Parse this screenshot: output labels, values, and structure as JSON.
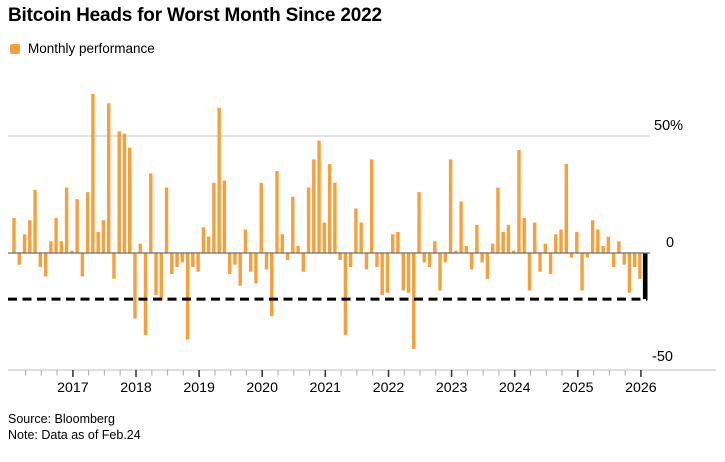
{
  "header": {
    "title": "Bitcoin Heads for Worst Month Since 2022"
  },
  "legend": {
    "label": "Monthly performance",
    "swatch_color": "#F89F38"
  },
  "footer": {
    "source": "Source: Bloomberg",
    "note": "Note: Data as of Feb.24"
  },
  "chart_data": {
    "type": "bar",
    "title": "Bitcoin Heads for Worst Month Since 2022",
    "series_label": "Monthly performance",
    "x_start_month": "2016-02",
    "x_end_month": "2026-02",
    "values": [
      15,
      -5,
      8,
      14,
      27,
      -6,
      -10,
      5,
      15,
      5,
      28,
      1,
      23,
      -10,
      26,
      68,
      9,
      14,
      64,
      -11,
      52,
      51,
      45,
      -28,
      4,
      -35,
      34,
      -18,
      -20,
      28,
      -9,
      -6,
      -4,
      -37,
      -6,
      -8,
      11,
      7,
      30,
      62,
      31,
      -9,
      -5,
      -14,
      10,
      -8,
      -13,
      30,
      -7,
      -27,
      35,
      8,
      -3,
      24,
      3,
      -8,
      28,
      40,
      48,
      13,
      38,
      30,
      -3,
      -35,
      -6,
      19,
      13,
      -7,
      40,
      -6,
      -18,
      -17,
      8,
      9,
      -16,
      -17,
      -41,
      26,
      -4,
      -6,
      5,
      -16,
      -4,
      40,
      1,
      22,
      3,
      -7,
      12,
      -4,
      -11,
      4,
      28,
      9,
      12,
      1,
      44,
      15,
      -16,
      13,
      -8,
      4,
      -9,
      8,
      10,
      38,
      -2,
      9,
      -16,
      -2,
      14,
      10,
      3,
      7,
      -6,
      5,
      -5,
      -17,
      -6,
      -11,
      -19.7
    ],
    "x_tick_years": [
      2017,
      2018,
      2019,
      2020,
      2021,
      2022,
      2023,
      2024,
      2025,
      2026
    ],
    "y_ticks": [
      {
        "label": "50%",
        "value": 50
      },
      {
        "label": "0",
        "value": 0
      },
      {
        "label": "-50",
        "value": -50
      }
    ],
    "ylim": [
      -50,
      70
    ],
    "grid": "single horizontal gridline at +50",
    "legend_position": "top-left",
    "bar_color": "#F89F38",
    "highlight_last_bar": {
      "enabled": true,
      "color": "#000000"
    },
    "dashed_reference_line": {
      "value": -19.7,
      "color": "#000000",
      "style": "dashed"
    },
    "colors": {
      "bar": "#F89F38",
      "highlight": "#000000",
      "zero_line": "#6e6e6e",
      "gridline": "#d9d9d9",
      "axis_baseline": "#c9c9c9",
      "major_tick": "#3c3c3c",
      "minor_tick": "#b5b5b5",
      "dashed_line": "#000000"
    }
  }
}
